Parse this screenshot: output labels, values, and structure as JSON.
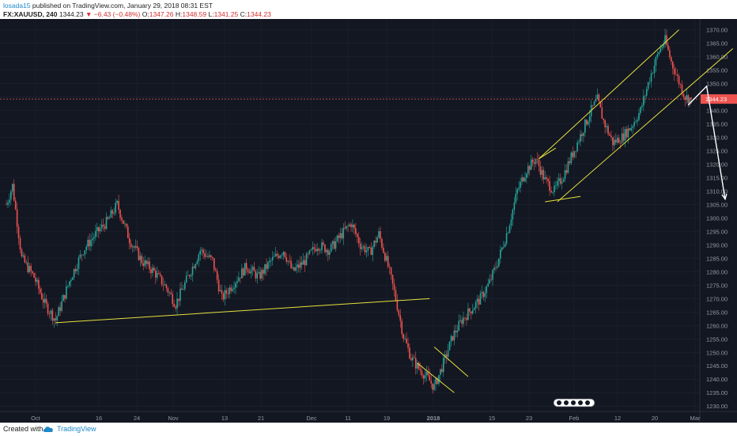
{
  "header": {
    "author": "losada15",
    "published_text": "published on TradingView.com, January 29, 2018 08:31 EST",
    "symbol": "FX:XAUUSD, 240",
    "last": "1344.23",
    "change_arrow": "▼",
    "change": "−6.43 (−0.48%)",
    "o_label": "O:",
    "o_value": "1347.26",
    "h_label": "H:",
    "h_value": "1348.59",
    "l_label": "L:",
    "l_value": "1341.25",
    "c_label": "C:",
    "c_value": "1344.23"
  },
  "footer": {
    "created": "Created with",
    "brand": "TradingView"
  },
  "colors": {
    "background": "#131722",
    "grid": "#1f2433",
    "up": "#26a69a",
    "down": "#ef5350",
    "trendline": "#e6e13c",
    "projection": "#ffffff",
    "price_line": "#ef5350",
    "axis_text": "#9598a1",
    "author": "#1e88c8"
  },
  "icons": [
    "tradingview-logo-icon",
    "down-triangle-icon",
    "timezone-badge-icon"
  ],
  "chart_data": {
    "type": "candlestick",
    "symbol": "FX:XAUUSD",
    "interval": "240",
    "ylim": [
      1228,
      1374
    ],
    "y_ticks": [
      1230,
      1235,
      1240,
      1245,
      1250,
      1255,
      1260,
      1265,
      1270,
      1275,
      1280,
      1285,
      1290,
      1295,
      1300,
      1305,
      1310,
      1315,
      1320,
      1325,
      1330,
      1335,
      1340,
      1345,
      1350,
      1355,
      1360,
      1365,
      1370
    ],
    "y_tick_labels": [
      "1230.00",
      "1235.00",
      "1240.00",
      "1245.00",
      "1250.00",
      "1255.00",
      "1260.00",
      "1265.00",
      "1270.00",
      "1275.00",
      "1280.00",
      "1285.00",
      "1290.00",
      "1295.00",
      "1300.00",
      "1305.00",
      "1310.00",
      "1315.00",
      "1320.00",
      "1325.00",
      "1330.00",
      "1335.00",
      "1340.00",
      "1345.00",
      "1350.00",
      "1355.00",
      "1360.00",
      "1365.00",
      "1370.00"
    ],
    "x_ticks": [
      "Oct",
      "16",
      "24",
      "Nov",
      "13",
      "21",
      "Dec",
      "11",
      "19",
      "2018",
      "15",
      "23",
      "Feb",
      "12",
      "20",
      "Mar"
    ],
    "current_price": 1344.23,
    "grid": true,
    "legend": "none",
    "price_path": [
      [
        0,
        1305
      ],
      [
        4,
        1312
      ],
      [
        10,
        1285
      ],
      [
        18,
        1278
      ],
      [
        25,
        1268
      ],
      [
        32,
        1262
      ],
      [
        42,
        1278
      ],
      [
        50,
        1288
      ],
      [
        58,
        1294
      ],
      [
        66,
        1299
      ],
      [
        72,
        1305
      ],
      [
        80,
        1292
      ],
      [
        88,
        1284
      ],
      [
        96,
        1280
      ],
      [
        104,
        1274
      ],
      [
        110,
        1268
      ],
      [
        118,
        1278
      ],
      [
        126,
        1288
      ],
      [
        134,
        1284
      ],
      [
        140,
        1270
      ],
      [
        148,
        1276
      ],
      [
        156,
        1282
      ],
      [
        164,
        1278
      ],
      [
        172,
        1284
      ],
      [
        180,
        1288
      ],
      [
        186,
        1280
      ],
      [
        194,
        1284
      ],
      [
        202,
        1290
      ],
      [
        210,
        1288
      ],
      [
        218,
        1294
      ],
      [
        224,
        1298
      ],
      [
        230,
        1290
      ],
      [
        236,
        1287
      ],
      [
        242,
        1294
      ],
      [
        248,
        1282
      ],
      [
        253,
        1270
      ],
      [
        258,
        1256
      ],
      [
        263,
        1248
      ],
      [
        268,
        1244
      ],
      [
        273,
        1241
      ],
      [
        278,
        1237
      ],
      [
        284,
        1246
      ],
      [
        290,
        1256
      ],
      [
        296,
        1262
      ],
      [
        302,
        1266
      ],
      [
        308,
        1270
      ],
      [
        314,
        1276
      ],
      [
        320,
        1285
      ],
      [
        326,
        1296
      ],
      [
        332,
        1310
      ],
      [
        338,
        1318
      ],
      [
        344,
        1322
      ],
      [
        350,
        1314
      ],
      [
        356,
        1310
      ],
      [
        362,
        1316
      ],
      [
        368,
        1324
      ],
      [
        374,
        1332
      ],
      [
        380,
        1340
      ],
      [
        384,
        1344
      ],
      [
        388,
        1336
      ],
      [
        394,
        1328
      ],
      [
        400,
        1330
      ],
      [
        406,
        1334
      ],
      [
        412,
        1340
      ],
      [
        418,
        1352
      ],
      [
        424,
        1362
      ],
      [
        428,
        1366
      ],
      [
        432,
        1358
      ],
      [
        436,
        1352
      ],
      [
        441,
        1345
      ],
      [
        445,
        1344.23
      ]
    ],
    "annotations": {
      "lower_trendline": [
        [
          32,
          1261
        ],
        [
          275,
          1270
        ]
      ],
      "december_channel": [
        [
          [
            267,
            1246
          ],
          [
            291,
            1235
          ]
        ],
        [
          [
            278,
            1252
          ],
          [
            300,
            1241
          ]
        ]
      ],
      "ascending_channel": [
        [
          [
            346,
            1322
          ],
          [
            437,
            1370
          ]
        ],
        [
          [
            358,
            1306
          ],
          [
            472,
            1363
          ]
        ]
      ],
      "january_flag": [
        [
          [
            346,
            1322
          ],
          [
            357,
            1326
          ]
        ],
        [
          [
            350,
            1306
          ],
          [
            373,
            1308
          ]
        ]
      ],
      "projection_arrows": [
        [
          [
            443,
            1342
          ],
          [
            455,
            1349
          ],
          [
            467,
            1307
          ]
        ]
      ]
    }
  }
}
